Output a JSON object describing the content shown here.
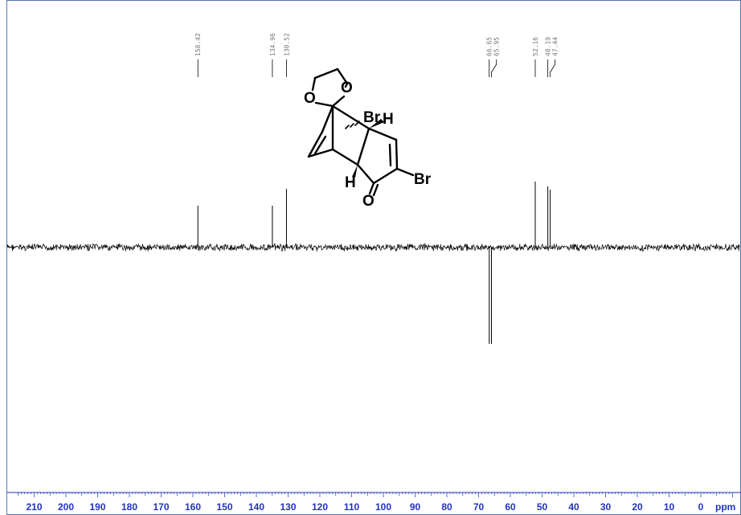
{
  "chart_data": {
    "type": "nmr-spectrum",
    "x_unit": "ppm",
    "xlim": [
      215,
      -10
    ],
    "x_reversed": true,
    "ticks": [
      210,
      200,
      190,
      180,
      170,
      160,
      150,
      140,
      130,
      120,
      110,
      100,
      90,
      80,
      70,
      60,
      50,
      40,
      30,
      20,
      10,
      0
    ],
    "peaks": [
      {
        "shift": 158.42,
        "label": "158.42",
        "phase": "up",
        "intensity": 0.52
      },
      {
        "shift": 134.96,
        "label": "134.96",
        "phase": "up",
        "intensity": 0.52
      },
      {
        "shift": 130.52,
        "label": "130.52",
        "phase": "up",
        "intensity": 0.73
      },
      {
        "shift": 66.65,
        "label": "66.65",
        "phase": "down",
        "intensity": 1.2
      },
      {
        "shift": 65.95,
        "label": "65.95",
        "phase": "down",
        "intensity": 1.2
      },
      {
        "shift": 52.16,
        "label": "52.16",
        "phase": "up",
        "intensity": 0.82
      },
      {
        "shift": 48.19,
        "label": "48.19",
        "phase": "up",
        "intensity": 0.76
      },
      {
        "shift": 47.44,
        "label": "47.44",
        "phase": "up",
        "intensity": 0.72
      }
    ],
    "grid": false,
    "legend": "none"
  },
  "structure": {
    "atom_labels": [
      "O",
      "O",
      "Br",
      "H",
      "Br",
      "H",
      "O"
    ]
  },
  "colors": {
    "frame": "#5577aa",
    "axis_text": "#2233bb",
    "spectrum": "#000000",
    "label_text": "#777777"
  }
}
